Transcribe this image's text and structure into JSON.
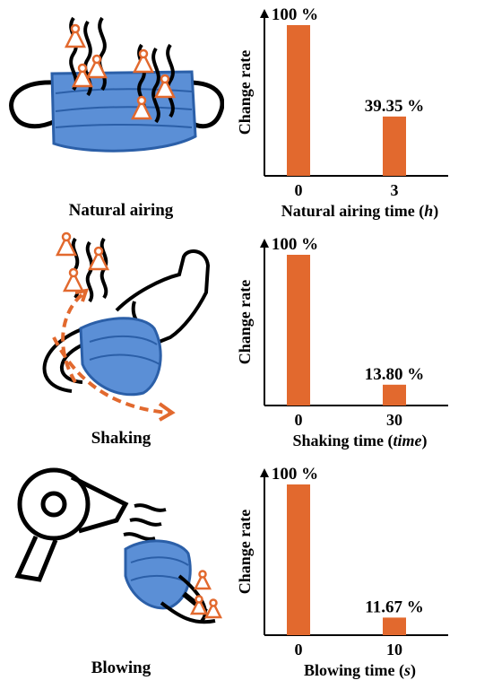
{
  "colors": {
    "bar": "#E2692E",
    "mask": "#5B8FD6",
    "mask_stroke": "#2B5FA8",
    "particle": "#E2692E",
    "axis": "#000000"
  },
  "panels": [
    {
      "illustration": "mask-with-particles-icon",
      "caption": "Natural airing"
    },
    {
      "illustration": "hand-shaking-mask-icon",
      "caption": "Shaking"
    },
    {
      "illustration": "hair-dryer-blowing-mask-icon",
      "caption": "Blowing"
    }
  ],
  "chart_data": [
    {
      "type": "bar",
      "categories": [
        "0",
        "3"
      ],
      "values": [
        100,
        39.35
      ],
      "data_labels": [
        "100 %",
        "39.35 %"
      ],
      "ylabel": "Change rate",
      "xlabel_text": "Natural airing time (",
      "xlabel_unit": "h",
      "xlabel_close": ")",
      "ylim": [
        0,
        100
      ]
    },
    {
      "type": "bar",
      "categories": [
        "0",
        "30"
      ],
      "values": [
        100,
        13.8
      ],
      "data_labels": [
        "100 %",
        "13.80 %"
      ],
      "ylabel": "Change rate",
      "xlabel_text": "Shaking time (",
      "xlabel_unit": "time",
      "xlabel_close": ")",
      "ylim": [
        0,
        100
      ]
    },
    {
      "type": "bar",
      "categories": [
        "0",
        "10"
      ],
      "values": [
        100,
        11.67
      ],
      "data_labels": [
        "100 %",
        "11.67 %"
      ],
      "ylabel": "Change rate",
      "xlabel_text": "Blowing time (",
      "xlabel_unit": "s",
      "xlabel_close": ")",
      "ylim": [
        0,
        100
      ]
    }
  ]
}
